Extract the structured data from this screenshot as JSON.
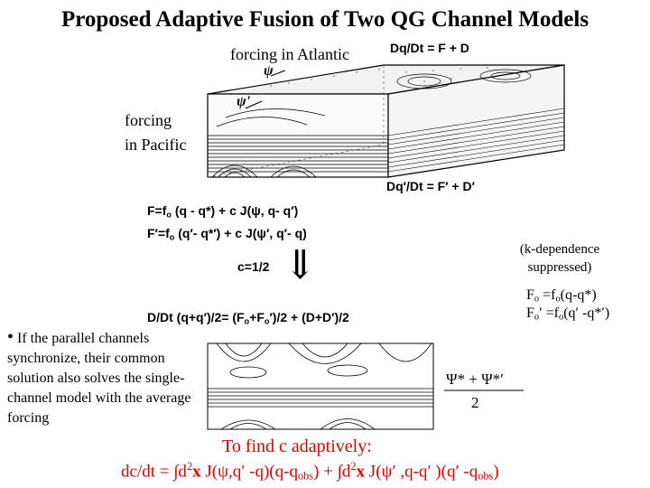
{
  "title": "Proposed Adaptive Fusion of Two  QG Channel Models",
  "labels": {
    "forcing_atlantic": "forcing in Atlantic",
    "forcing_pacific_1": "forcing",
    "forcing_pacific_2": "in Pacific",
    "psi_label": "ψ",
    "psi_prime_label": "ψ'",
    "eq_top_right": "Dq/Dt = F + D",
    "eq_bottom_right": "Dq′/Dt = F′ + D′"
  },
  "equations": {
    "F_lhs": "F=f",
    "F_sub": "o",
    "F_rhs": " (q - q*) +  c J(ψ, q- q′)",
    "Fp_lhs": "F′=f",
    "Fp_sub": "o",
    "Fp_rhs": " (q′- q*′) + c J(ψ′, q′- q)",
    "c_value": "c=1/2",
    "arrow": "⇓",
    "avg_a": "D/Dt (q+q′)/2=  (F",
    "avg_sub1": "o",
    "avg_b": "+F",
    "avg_sub2": "o",
    "avg_c": "′)/2 + (D+D′)/2",
    "note_1": "(k-dependence",
    "note_2": "suppressed)",
    "fo_1a": "F",
    "fo_1sub": "o",
    "fo_1b": " =f",
    "fo_1sub2": "o",
    "fo_1c": "(q-q*)",
    "fo_2a": "F",
    "fo_2sub": "o",
    "fo_2b": "′ =f",
    "fo_2sub2": "o",
    "fo_2c": "(q′ -q*′)",
    "psi_avg_num": "Ψ* + Ψ*′",
    "psi_avg_den": "2"
  },
  "bullet": "If the parallel channels synchronize, their common solution also solves the single-channel model with the average forcing",
  "adaptive": {
    "heading": "To find  c  adaptively:",
    "lhs": "dc/dt = ",
    "int1a": "∫d",
    "int1sup": "2",
    "int1b": "x",
    "int1c": "  J(ψ,q′ -q)(q-q",
    "int1sub": "obs",
    "int1d": ")  +  ",
    "int2a": "∫d",
    "int2sup": "2",
    "int2b": "x",
    "int2c": "  J(ψ′ ,q-q′ )(q′ -q",
    "int2sub": "obs",
    "int2d": ")"
  }
}
